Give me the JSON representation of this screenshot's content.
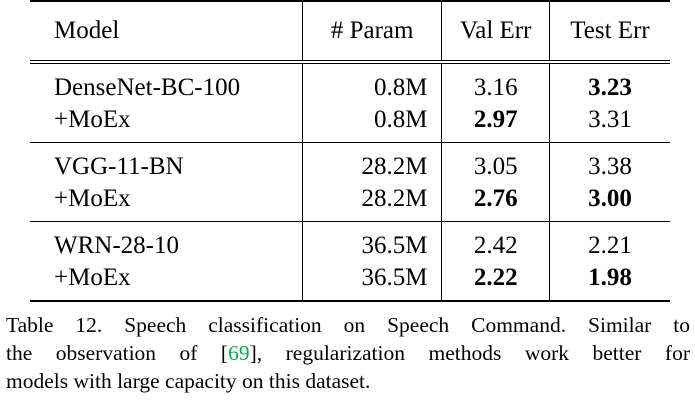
{
  "table": {
    "headers": [
      "Model",
      "# Param",
      "Val Err",
      "Test Err"
    ],
    "groups": [
      {
        "rows": [
          {
            "model": "DenseNet-BC-100",
            "param": "0.8M",
            "val": "3.16",
            "val_bold": false,
            "test": "3.23",
            "test_bold": true
          },
          {
            "model": "+MoEx",
            "param": "0.8M",
            "val": "2.97",
            "val_bold": true,
            "test": "3.31",
            "test_bold": false
          }
        ]
      },
      {
        "rows": [
          {
            "model": "VGG-11-BN",
            "param": "28.2M",
            "val": "3.05",
            "val_bold": false,
            "test": "3.38",
            "test_bold": false
          },
          {
            "model": "+MoEx",
            "param": "28.2M",
            "val": "2.76",
            "val_bold": true,
            "test": "3.00",
            "test_bold": true
          }
        ]
      },
      {
        "rows": [
          {
            "model": "WRN-28-10",
            "param": "36.5M",
            "val": "2.42",
            "val_bold": false,
            "test": "2.21",
            "test_bold": false
          },
          {
            "model": "+MoEx",
            "param": "36.5M",
            "val": "2.22",
            "val_bold": true,
            "test": "1.98",
            "test_bold": true
          }
        ]
      }
    ]
  },
  "caption": {
    "line1": "Table 12. Speech classification on Speech Command. Similar to",
    "line2_pre": "the observation of [",
    "cite": "69",
    "line2_post": "], regularization methods work better for",
    "line3": "models with large capacity on this dataset."
  },
  "colors": {
    "citation_link": "#00b050"
  }
}
